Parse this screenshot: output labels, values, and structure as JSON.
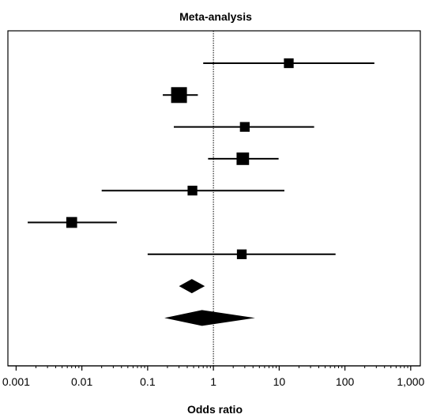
{
  "chart_data": {
    "type": "forest",
    "title": "Meta-analysis",
    "xlabel": "Odds ratio",
    "ylabel": "",
    "x_scale": "log",
    "xlim": [
      0.00075,
      1400
    ],
    "reference_line": 1,
    "grid": false,
    "legend": "none",
    "ticks": [
      {
        "value": 0.001,
        "label": "0.001"
      },
      {
        "value": 0.01,
        "label": "0.01"
      },
      {
        "value": 0.1,
        "label": "0.1"
      },
      {
        "value": 1,
        "label": "1"
      },
      {
        "value": 10,
        "label": "10"
      },
      {
        "value": 100,
        "label": "100"
      },
      {
        "value": 1000,
        "label": "1,000"
      }
    ],
    "studies": [
      {
        "or": 14,
        "lower": 0.7,
        "upper": 280,
        "weight": 0.45
      },
      {
        "or": 0.3,
        "lower": 0.17,
        "upper": 0.58,
        "weight": 1.0
      },
      {
        "or": 3.0,
        "lower": 0.25,
        "upper": 34,
        "weight": 0.45
      },
      {
        "or": 2.8,
        "lower": 0.83,
        "upper": 9.8,
        "weight": 0.7
      },
      {
        "or": 0.48,
        "lower": 0.02,
        "upper": 12,
        "weight": 0.45
      },
      {
        "or": 0.007,
        "lower": 0.0015,
        "upper": 0.034,
        "weight": 0.55
      },
      {
        "or": 2.7,
        "lower": 0.1,
        "upper": 72,
        "weight": 0.45
      }
    ],
    "pooled": [
      {
        "or": 0.47,
        "lower": 0.3,
        "upper": 0.74
      },
      {
        "or": 0.67,
        "lower": 0.18,
        "upper": 4.3
      }
    ],
    "colors": {
      "marker": "#000000",
      "reference_line": "#000000",
      "frame": "#000000"
    }
  }
}
